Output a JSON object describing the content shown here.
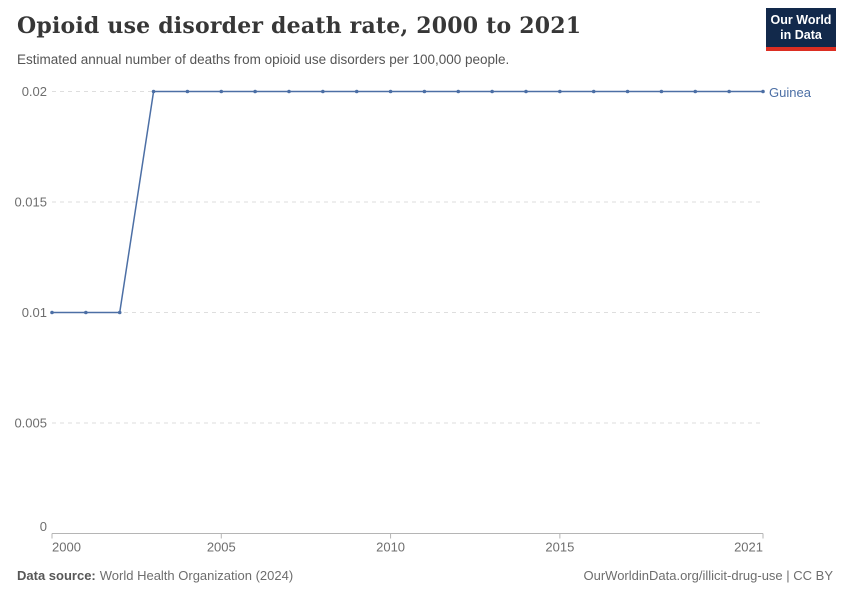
{
  "header": {
    "title": "Opioid use disorder death rate, 2000 to 2021",
    "subtitle": "Estimated annual number of deaths from opioid use disorders per 100,000 people.",
    "logo": {
      "line1": "Our World",
      "line2": "in Data",
      "bg_color": "#12294b",
      "accent_color": "#dc2e22"
    }
  },
  "chart_data": {
    "type": "line",
    "title": "Opioid use disorder death rate, 2000 to 2021",
    "xlabel": "",
    "ylabel": "",
    "xlim": [
      2000,
      2021
    ],
    "ylim": [
      0,
      0.02
    ],
    "x_ticks": [
      2000,
      2005,
      2010,
      2015,
      2021
    ],
    "y_ticks": [
      0,
      0.005,
      0.01,
      0.015,
      0.02
    ],
    "grid": "horizontal-dashed",
    "legend_position": "end-of-line-label",
    "series": [
      {
        "name": "Guinea",
        "color": "#4C6FA5",
        "marker": "dot",
        "x": [
          2000,
          2001,
          2002,
          2003,
          2004,
          2005,
          2006,
          2007,
          2008,
          2009,
          2010,
          2011,
          2012,
          2013,
          2014,
          2015,
          2016,
          2017,
          2018,
          2019,
          2020,
          2021
        ],
        "values": [
          0.01,
          0.01,
          0.01,
          0.02,
          0.02,
          0.02,
          0.02,
          0.02,
          0.02,
          0.02,
          0.02,
          0.02,
          0.02,
          0.02,
          0.02,
          0.02,
          0.02,
          0.02,
          0.02,
          0.02,
          0.02,
          0.02
        ]
      }
    ]
  },
  "footer": {
    "source_label": "Data source:",
    "source_text": "World Health Organization (2024)",
    "link_text": "OurWorldinData.org/illicit-drug-use | CC BY"
  }
}
